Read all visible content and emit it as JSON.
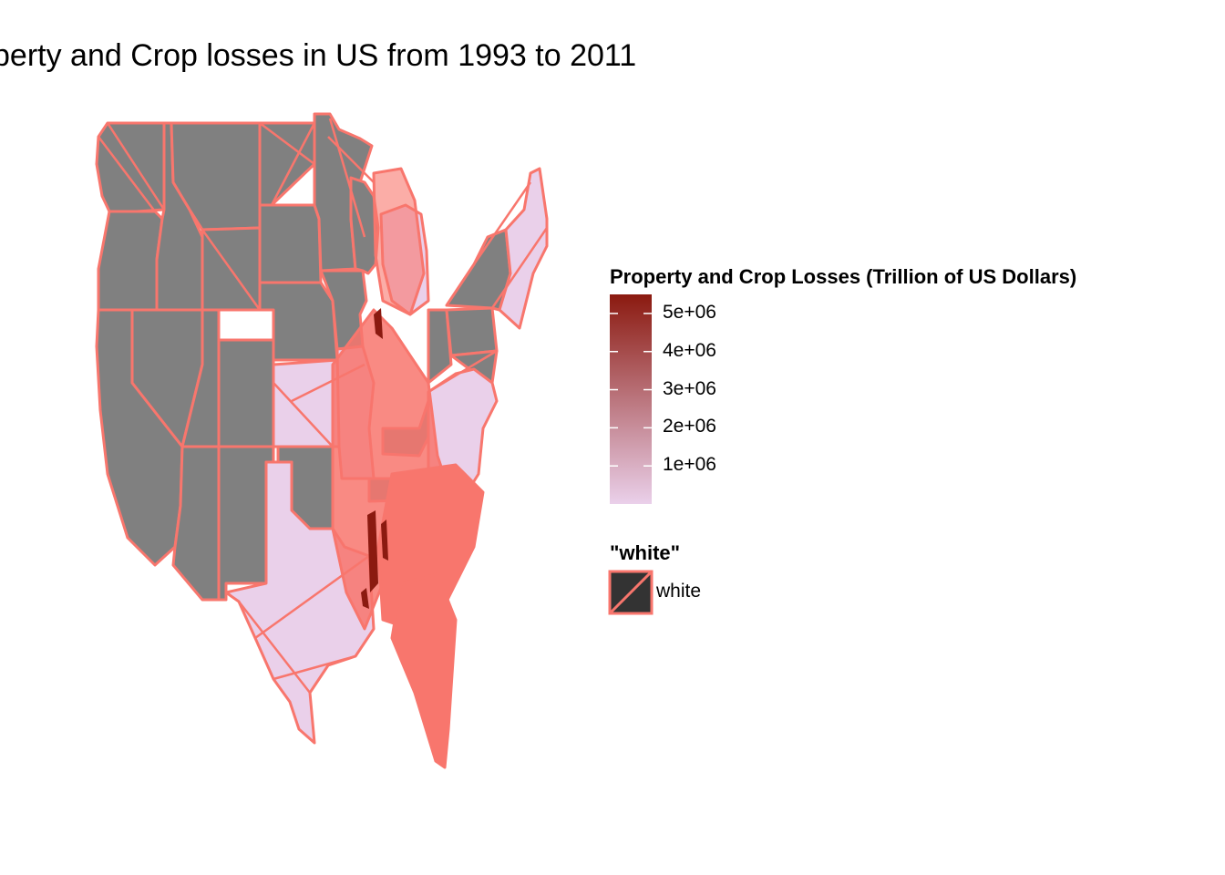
{
  "title": "perty and Crop losses in US from 1993 to 2011",
  "legends": {
    "fill": {
      "title": "Property and Crop Losses (Trillion of US Dollars)",
      "ticks": [
        {
          "value": 5000000,
          "label": "5e+06"
        },
        {
          "value": 4000000,
          "label": "4e+06"
        },
        {
          "value": 3000000,
          "label": "3e+06"
        },
        {
          "value": 2000000,
          "label": "2e+06"
        },
        {
          "value": 1000000,
          "label": "1e+06"
        }
      ],
      "range": [
        0,
        5500000
      ],
      "low_color": "#ead0ea",
      "high_color": "#8b1a10"
    },
    "color": {
      "title": "\"white\"",
      "key_label": "white",
      "key_fill": "#333333",
      "key_stroke": "#f8766d"
    }
  },
  "colors": {
    "missing_fill": "#808080",
    "low_loss_fill": "#ead0ea",
    "high_loss_fill": "#8b1a10",
    "border": "#f8766d",
    "background": "#ffffff"
  }
}
